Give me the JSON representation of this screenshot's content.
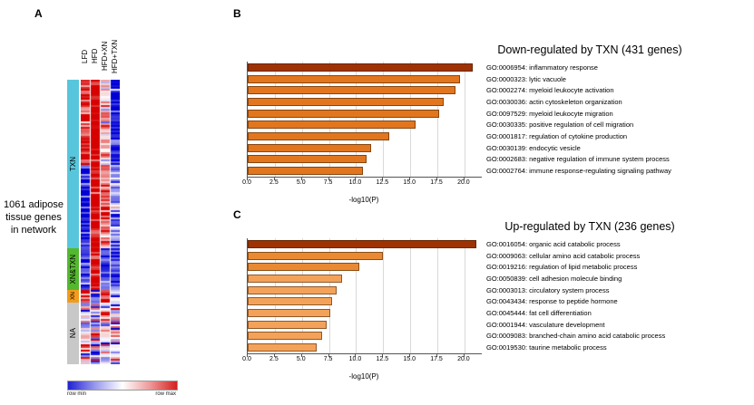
{
  "panels": {
    "a": "A",
    "b": "B",
    "c": "C"
  },
  "heatmap": {
    "columns": [
      "LFD",
      "HFD",
      "HFD+XN",
      "HFD+TXN"
    ],
    "row_groups": [
      {
        "label": "TXN",
        "color": "#57c6dc",
        "height": 186
      },
      {
        "label": "XN&TXN",
        "color": "#54b82e",
        "height": 46
      },
      {
        "label": "XN",
        "color": "#f29b1d",
        "height": 14
      },
      {
        "label": "NA",
        "color": "#c8c8c8",
        "height": 68
      }
    ],
    "side_text": "1061 adipose tissue genes in network",
    "scale": {
      "min_label": "row min",
      "max_label": "row max"
    },
    "cell_color_low": "#2121d4",
    "cell_color_high": "#d42020"
  },
  "chart_data": [
    {
      "type": "bar",
      "panel": "B",
      "title": "Down-regulated by TXN (431 genes)",
      "xlabel": "-log10(P)",
      "xlim": [
        0,
        21.6
      ],
      "xticks": [
        0,
        2.5,
        5,
        7.5,
        10,
        12.5,
        15,
        17.5,
        20
      ],
      "xtick_labels": [
        "0.0",
        "2.5",
        "5.0",
        "7.5",
        "10.0",
        "12.5",
        "15.0",
        "17.5",
        "20.0"
      ],
      "grid": true,
      "categories": [
        "GO:0006954: inflammatory response",
        "GO:0000323: lytic vacuole",
        "GO:0002274: myeloid leukocyte activation",
        "GO:0030036: actin cytoskeleton organization",
        "GO:0097529: myeloid leukocyte migration",
        "GO:0030335: positive regulation of cell migration",
        "GO:0001817: regulation of cytokine production",
        "GO:0030139: endocytic vesicle",
        "GO:0002683: negative regulation of immune system process",
        "GO:0002764: immune response-regulating signaling pathway"
      ],
      "values": [
        20.8,
        19.6,
        19.2,
        18.1,
        17.7,
        15.5,
        13.1,
        11.4,
        11.0,
        10.6
      ],
      "colors": [
        "#9e3203",
        "#e2761f",
        "#e2761f",
        "#e2761f",
        "#e2761f",
        "#e2761f",
        "#e2761f",
        "#e2761f",
        "#e2761f",
        "#e2761f"
      ]
    },
    {
      "type": "bar",
      "panel": "C",
      "title": "Up-regulated by TXN (236 genes)",
      "xlabel": "-log10(P)",
      "xlim": [
        0,
        21.6
      ],
      "xticks": [
        0,
        2.5,
        5,
        7.5,
        10,
        12.5,
        15,
        17.5,
        20
      ],
      "xtick_labels": [
        "0.0",
        "2.5",
        "5.0",
        "7.5",
        "10.0",
        "12.5",
        "15.0",
        "17.5",
        "20.0"
      ],
      "grid": true,
      "categories": [
        "GO:0016054: organic acid catabolic process",
        "GO:0009063: cellular amino acid catabolic process",
        "GO:0019216: regulation of lipid metabolic process",
        "GO:0050839: cell adhesion molecule binding",
        "GO:0003013: circulatory system process",
        "GO:0043434: response to peptide hormone",
        "GO:0045444: fat cell differentiation",
        "GO:0001944: vasculature development",
        "GO:0009083: branched-chain amino acid catabolic process",
        "GO:0019530: taurine metabolic process"
      ],
      "values": [
        21.1,
        12.5,
        10.3,
        8.7,
        8.2,
        7.8,
        7.6,
        7.3,
        6.9,
        6.4
      ],
      "colors": [
        "#9e3203",
        "#e98a33",
        "#e98a33",
        "#f4a259",
        "#f4a259",
        "#f4a259",
        "#f4a259",
        "#f4a259",
        "#f4a259",
        "#f4a259"
      ]
    }
  ]
}
